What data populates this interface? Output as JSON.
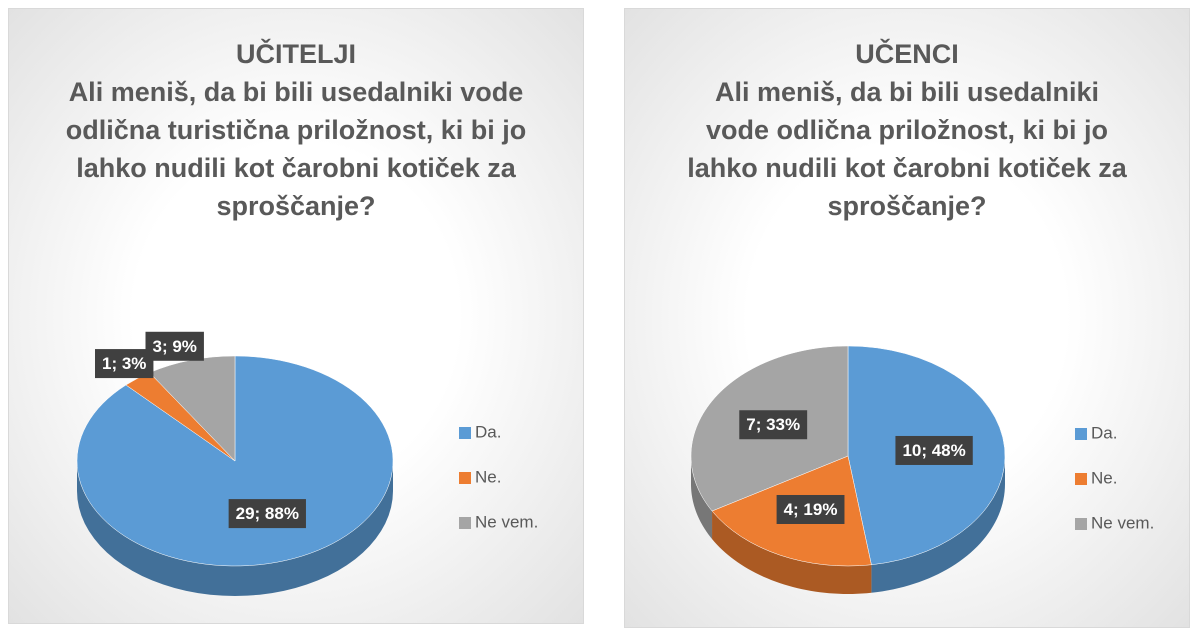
{
  "chart_data": [
    {
      "type": "pie",
      "title": "UČITELJI",
      "subtitle": "Ali meniš, da bi bili usedalniki vode odlična turistična priložnost, ki bi jo lahko nudili kot čarobni kotiček za sproščanje?",
      "categories": [
        "Da.",
        "Ne.",
        "Ne vem."
      ],
      "values": [
        29,
        1,
        3
      ],
      "value_labels": [
        "29; 88%",
        "1; 3%",
        "3; 9%"
      ],
      "colors": [
        "#5b9bd5",
        "#ed7d31",
        "#a5a5a5"
      ],
      "legend": "right"
    },
    {
      "type": "pie",
      "title": "UČENCI",
      "subtitle": "Ali meniš, da bi bili usedalniki vode odlična priložnost, ki bi jo lahko nudili kot čarobni kotiček za sproščanje?",
      "categories": [
        "Da.",
        "Ne.",
        "Ne vem."
      ],
      "values": [
        10,
        4,
        7
      ],
      "value_labels": [
        "10; 48%",
        "4; 19%",
        "7; 33%"
      ],
      "colors": [
        "#5b9bd5",
        "#ed7d31",
        "#a5a5a5"
      ],
      "legend": "right"
    }
  ]
}
